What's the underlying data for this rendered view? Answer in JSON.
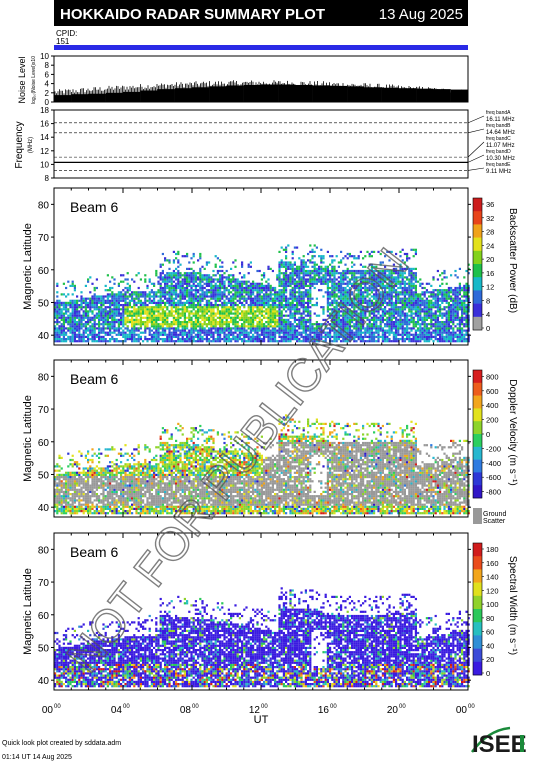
{
  "header": {
    "title": "HOKKAIDO RADAR SUMMARY PLOT",
    "date": "13 Aug 2025",
    "cpid_label": "CPID:",
    "cpid_value": "151"
  },
  "watermark": "NOT FOR PUBLICATION",
  "footer": {
    "credit": "Quick look plot created by sddata.adm",
    "timestamp": "01:14 UT 14 Aug 2025",
    "logo": "ISEE"
  },
  "colors": {
    "cpid_bar": "#2a2ae6",
    "ground_scatter": "#999999"
  },
  "chart_data": [
    {
      "name": "noise",
      "type": "bar",
      "ylabel": "Noise Level",
      "ylabel_sub": "log₁₀(Noise Level)x10",
      "ylim": [
        0,
        10
      ],
      "yticks": [
        "0",
        "2",
        "4",
        "6",
        "8",
        "10"
      ],
      "x_hours": [
        0,
        1,
        2,
        3,
        4,
        5,
        6,
        7,
        8,
        9,
        10,
        11,
        12,
        13,
        14,
        15,
        16,
        17,
        18,
        19,
        20,
        21,
        22,
        23,
        24
      ],
      "values": [
        1.5,
        1.7,
        1.8,
        2.0,
        2.2,
        2.5,
        2.8,
        3.0,
        3.2,
        3.4,
        3.6,
        3.7,
        3.8,
        3.8,
        3.7,
        3.6,
        3.5,
        3.4,
        3.2,
        3.1,
        3.0,
        2.9,
        2.8,
        2.7,
        2.6
      ]
    },
    {
      "name": "frequency",
      "type": "line",
      "ylabel": "Frequency",
      "ylabel_unit": "(MHz)",
      "ylim": [
        8,
        18
      ],
      "yticks": [
        "8",
        "10",
        "12",
        "14",
        "16",
        "18"
      ],
      "bands": [
        {
          "label": "freq bandA",
          "value": "16.11 MHz",
          "mhz": 16.11
        },
        {
          "label": "freq bandB",
          "value": "14.64 MHz",
          "mhz": 14.64
        },
        {
          "label": "freq bandC",
          "value": "11.07 MHz",
          "mhz": 11.07
        },
        {
          "label": "freq bandD",
          "value": "10.30 MHz",
          "mhz": 10.3
        },
        {
          "label": "freq bandE",
          "value": "9.11 MHz",
          "mhz": 9.11
        }
      ]
    },
    {
      "name": "power",
      "type": "heatmap",
      "beam": "Beam  6",
      "ylabel": "Magnetic Latitude",
      "ylim": [
        37,
        85
      ],
      "yticks": [
        "40",
        "50",
        "60",
        "70",
        "80"
      ],
      "colorbar_label": "Backscatter Power (dB)",
      "colorbar_ticks": [
        "0",
        "4",
        "8",
        "12",
        "16",
        "20",
        "24",
        "28",
        "32",
        "36"
      ]
    },
    {
      "name": "velocity",
      "type": "heatmap",
      "beam": "Beam  6",
      "ylabel": "Magnetic Latitude",
      "ylim": [
        37,
        85
      ],
      "yticks": [
        "40",
        "50",
        "60",
        "70",
        "80"
      ],
      "colorbar_label": "Doppler Velocity (m s⁻¹)",
      "colorbar_ticks": [
        "800",
        "600",
        "400",
        "200",
        "0",
        "-200",
        "-400",
        "-600",
        "-800"
      ],
      "ground_label_1": "Ground",
      "ground_label_2": "Scatter"
    },
    {
      "name": "width",
      "type": "heatmap",
      "beam": "Beam  6",
      "ylabel": "Magnetic Latitude",
      "ylim": [
        37,
        85
      ],
      "yticks": [
        "40",
        "50",
        "60",
        "70",
        "80"
      ],
      "colorbar_label": "Spectral Width (m s⁻¹)",
      "colorbar_ticks": [
        "0",
        "20",
        "40",
        "60",
        "80",
        "100",
        "120",
        "140",
        "160",
        "180"
      ],
      "xlabel": "UT",
      "xticks": [
        "00",
        "04",
        "08",
        "12",
        "16",
        "20",
        "00"
      ],
      "xticks_sup": "00"
    }
  ]
}
